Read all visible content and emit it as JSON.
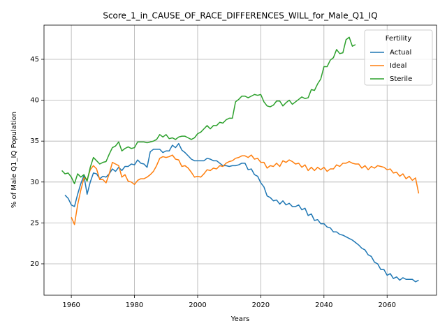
{
  "chart_data": {
    "type": "line",
    "title": "Score_1_in_CAUSE_OF_RACE_DIFFERENCES_WILL_for_Male_Q1_IQ",
    "xlabel": "Years",
    "ylabel": "% of Male Q1_IQ Population",
    "legend_title": "Fertility",
    "legend": "upper right",
    "grid": true,
    "xlim": [
      1951.35,
      2075.65
    ],
    "ylim": [
      16.16,
      49.18
    ],
    "xticks": [
      1960,
      1980,
      2000,
      2020,
      2040,
      2060
    ],
    "yticks": [
      20,
      25,
      30,
      35,
      40,
      45
    ],
    "x": [
      1957,
      1958,
      1959,
      1960,
      1961,
      1962,
      1963,
      1964,
      1965,
      1966,
      1967,
      1968,
      1969,
      1970,
      1971,
      1972,
      1973,
      1974,
      1975,
      1976,
      1977,
      1978,
      1979,
      1980,
      1981,
      1982,
      1983,
      1984,
      1985,
      1986,
      1987,
      1988,
      1989,
      1990,
      1991,
      1992,
      1993,
      1994,
      1995,
      1996,
      1997,
      1998,
      1999,
      2000,
      2001,
      2002,
      2003,
      2004,
      2005,
      2006,
      2007,
      2008,
      2009,
      2010,
      2011,
      2012,
      2013,
      2014,
      2015,
      2016,
      2017,
      2018,
      2019,
      2020,
      2021,
      2022,
      2023,
      2024,
      2025,
      2026,
      2027,
      2028,
      2029,
      2030,
      2031,
      2032,
      2033,
      2034,
      2035,
      2036,
      2037,
      2038,
      2039,
      2040,
      2041,
      2042,
      2043,
      2044,
      2045,
      2046,
      2047,
      2048,
      2049,
      2050,
      2051,
      2052,
      2053,
      2054,
      2055,
      2056,
      2057,
      2058,
      2059,
      2060,
      2061,
      2062,
      2063,
      2064,
      2065,
      2066,
      2067,
      2068,
      2069,
      2070
    ],
    "series": [
      {
        "name": "Actual",
        "color": "#1f77b4",
        "values": [
          null,
          28.4,
          28.0,
          27.2,
          27.0,
          28.5,
          29.8,
          30.8,
          28.5,
          30.0,
          31.1,
          31.0,
          30.4,
          30.7,
          30.6,
          31.0,
          31.6,
          31.3,
          31.8,
          31.4,
          31.9,
          31.9,
          32.2,
          32.1,
          32.7,
          32.3,
          32.2,
          31.8,
          33.7,
          34.0,
          34.0,
          34.0,
          33.6,
          33.8,
          33.8,
          34.5,
          34.2,
          34.7,
          33.9,
          33.6,
          33.2,
          32.8,
          32.6,
          32.6,
          32.6,
          32.6,
          32.9,
          32.8,
          32.6,
          32.6,
          32.3,
          32.0,
          32.0,
          31.9,
          32.0,
          32.0,
          32.1,
          32.3,
          32.3,
          31.5,
          31.6,
          30.9,
          30.7,
          29.9,
          29.4,
          28.3,
          28.1,
          27.7,
          27.8,
          27.3,
          27.7,
          27.2,
          27.4,
          27.0,
          27.0,
          27.2,
          26.6,
          26.8,
          25.9,
          26.1,
          25.3,
          25.4,
          24.9,
          24.9,
          24.5,
          24.4,
          23.9,
          23.9,
          23.6,
          23.5,
          23.3,
          23.1,
          22.9,
          22.6,
          22.3,
          21.9,
          21.7,
          21.1,
          20.9,
          20.2,
          20.0,
          19.3,
          19.3,
          18.6,
          18.8,
          18.2,
          18.4,
          18.0,
          18.3,
          18.1,
          18.1,
          18.1,
          17.8,
          18.0
        ]
      },
      {
        "name": "Ideal",
        "color": "#ff7f0e",
        "values": [
          null,
          null,
          null,
          25.7,
          24.8,
          27.2,
          29.0,
          30.5,
          30.3,
          31.5,
          32.0,
          31.6,
          30.3,
          30.3,
          29.9,
          31.0,
          32.4,
          32.2,
          32.0,
          30.6,
          30.9,
          30.1,
          30.0,
          29.7,
          30.2,
          30.4,
          30.4,
          30.6,
          30.9,
          31.3,
          32.0,
          32.9,
          33.1,
          33.0,
          33.1,
          33.3,
          32.8,
          32.7,
          31.9,
          32.0,
          31.7,
          31.2,
          30.6,
          30.7,
          30.6,
          31.0,
          31.5,
          31.4,
          31.7,
          31.6,
          32.0,
          31.9,
          32.3,
          32.5,
          32.6,
          32.9,
          33.0,
          33.2,
          33.2,
          33.0,
          33.3,
          32.8,
          32.9,
          32.4,
          32.4,
          31.7,
          32.0,
          31.9,
          32.3,
          31.9,
          32.6,
          32.4,
          32.7,
          32.5,
          32.2,
          32.3,
          31.8,
          32.1,
          31.4,
          31.8,
          31.4,
          31.8,
          31.5,
          31.8,
          31.3,
          31.6,
          31.6,
          32.1,
          31.9,
          32.3,
          32.3,
          32.5,
          32.3,
          32.2,
          32.2,
          31.7,
          32.0,
          31.5,
          31.9,
          31.7,
          32.0,
          31.9,
          31.8,
          31.5,
          31.6,
          31.1,
          31.2,
          30.7,
          31.0,
          30.4,
          30.7,
          30.2,
          30.5,
          28.6
        ]
      },
      {
        "name": "Sterile",
        "color": "#2ca02c",
        "values": [
          31.4,
          31.0,
          31.1,
          30.6,
          29.8,
          31.0,
          30.6,
          30.9,
          30.1,
          31.8,
          33.0,
          32.6,
          32.2,
          32.4,
          32.5,
          33.4,
          34.2,
          34.4,
          34.9,
          33.8,
          34.1,
          34.3,
          34.1,
          34.2,
          34.9,
          34.9,
          34.9,
          34.8,
          34.9,
          35.0,
          35.2,
          35.8,
          35.5,
          35.8,
          35.3,
          35.4,
          35.2,
          35.5,
          35.6,
          35.6,
          35.4,
          35.2,
          35.4,
          35.9,
          36.1,
          36.5,
          36.9,
          36.5,
          36.9,
          36.9,
          37.3,
          37.2,
          37.6,
          37.8,
          37.8,
          39.8,
          40.1,
          40.5,
          40.5,
          40.3,
          40.5,
          40.7,
          40.6,
          40.7,
          39.8,
          39.3,
          39.2,
          39.4,
          39.9,
          39.9,
          39.3,
          39.7,
          40.0,
          39.5,
          39.8,
          40.1,
          40.4,
          40.2,
          40.3,
          41.3,
          41.2,
          42.0,
          42.6,
          44.1,
          44.1,
          44.9,
          45.2,
          46.2,
          45.7,
          45.8,
          47.4,
          47.7,
          46.6,
          46.8,
          null,
          null,
          null,
          null,
          null,
          null,
          null,
          null,
          null,
          null,
          null,
          null,
          null,
          null,
          null,
          null,
          null,
          null,
          null,
          null
        ]
      }
    ]
  }
}
